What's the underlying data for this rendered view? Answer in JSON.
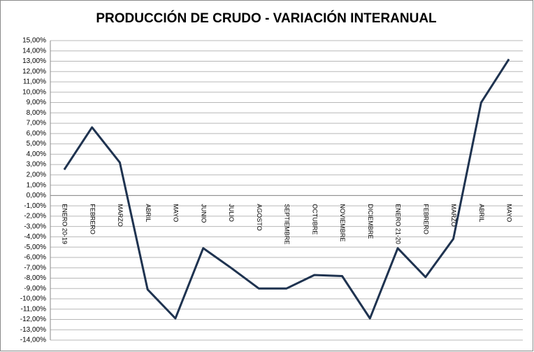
{
  "chart_data": {
    "type": "line",
    "title": "PRODUCCIÓN DE CRUDO - VARIACIÓN INTERANUAL",
    "categories": [
      "ENERO 20-19",
      "FEBRERO",
      "MARZO",
      "ABRIL",
      "MAYO",
      "JUNIO",
      "JULIO",
      "AGOSTO",
      "SEPTIEMBRE",
      "OCTUBRE",
      "NOVIEMBRE",
      "DICIEMBRE",
      "ENERO 21-20",
      "FEBRERO",
      "MARZO",
      "ABRIL",
      "MAYO"
    ],
    "values": [
      2.5,
      6.6,
      3.2,
      -9.1,
      -11.9,
      -5.1,
      -7.0,
      -9.0,
      -9.0,
      -7.7,
      -7.8,
      -11.9,
      -5.1,
      -7.9,
      -4.2,
      9.0,
      13.2
    ],
    "color": "#1f3350",
    "grid": true,
    "ylim": [
      -14,
      15
    ],
    "yticks": [
      {
        "value": 15,
        "label": "15,00%"
      },
      {
        "value": 14,
        "label": "14,00%"
      },
      {
        "value": 13,
        "label": "13,00%"
      },
      {
        "value": 12,
        "label": "12,00%"
      },
      {
        "value": 11,
        "label": "11,00%"
      },
      {
        "value": 10,
        "label": "10,00%"
      },
      {
        "value": 9,
        "label": "9,00%"
      },
      {
        "value": 8,
        "label": "8,00%"
      },
      {
        "value": 7,
        "label": "7,00%"
      },
      {
        "value": 6,
        "label": "6,00%"
      },
      {
        "value": 5,
        "label": "5,00%"
      },
      {
        "value": 4,
        "label": "4,00%"
      },
      {
        "value": 3,
        "label": "3,00%"
      },
      {
        "value": 2,
        "label": "2,00%"
      },
      {
        "value": 1,
        "label": "1,00%"
      },
      {
        "value": 0,
        "label": "0,00%"
      },
      {
        "value": -1,
        "label": "-1,00%"
      },
      {
        "value": -2,
        "label": "-2,00%"
      },
      {
        "value": -3,
        "label": "-3,00%"
      },
      {
        "value": -4,
        "label": "-4,00%"
      },
      {
        "value": -5,
        "label": "-5,00%"
      },
      {
        "value": -6,
        "label": "-6,00%"
      },
      {
        "value": -7,
        "label": "-7,00%"
      },
      {
        "value": -8,
        "label": "-8,00%"
      },
      {
        "value": -9,
        "label": "-9,00%"
      },
      {
        "value": -10,
        "label": "-10,00%"
      },
      {
        "value": -11,
        "label": "-11,00%"
      },
      {
        "value": -12,
        "label": "-12,00%"
      },
      {
        "value": -13,
        "label": "-13,00%"
      },
      {
        "value": -14,
        "label": "-14,00%"
      }
    ]
  }
}
